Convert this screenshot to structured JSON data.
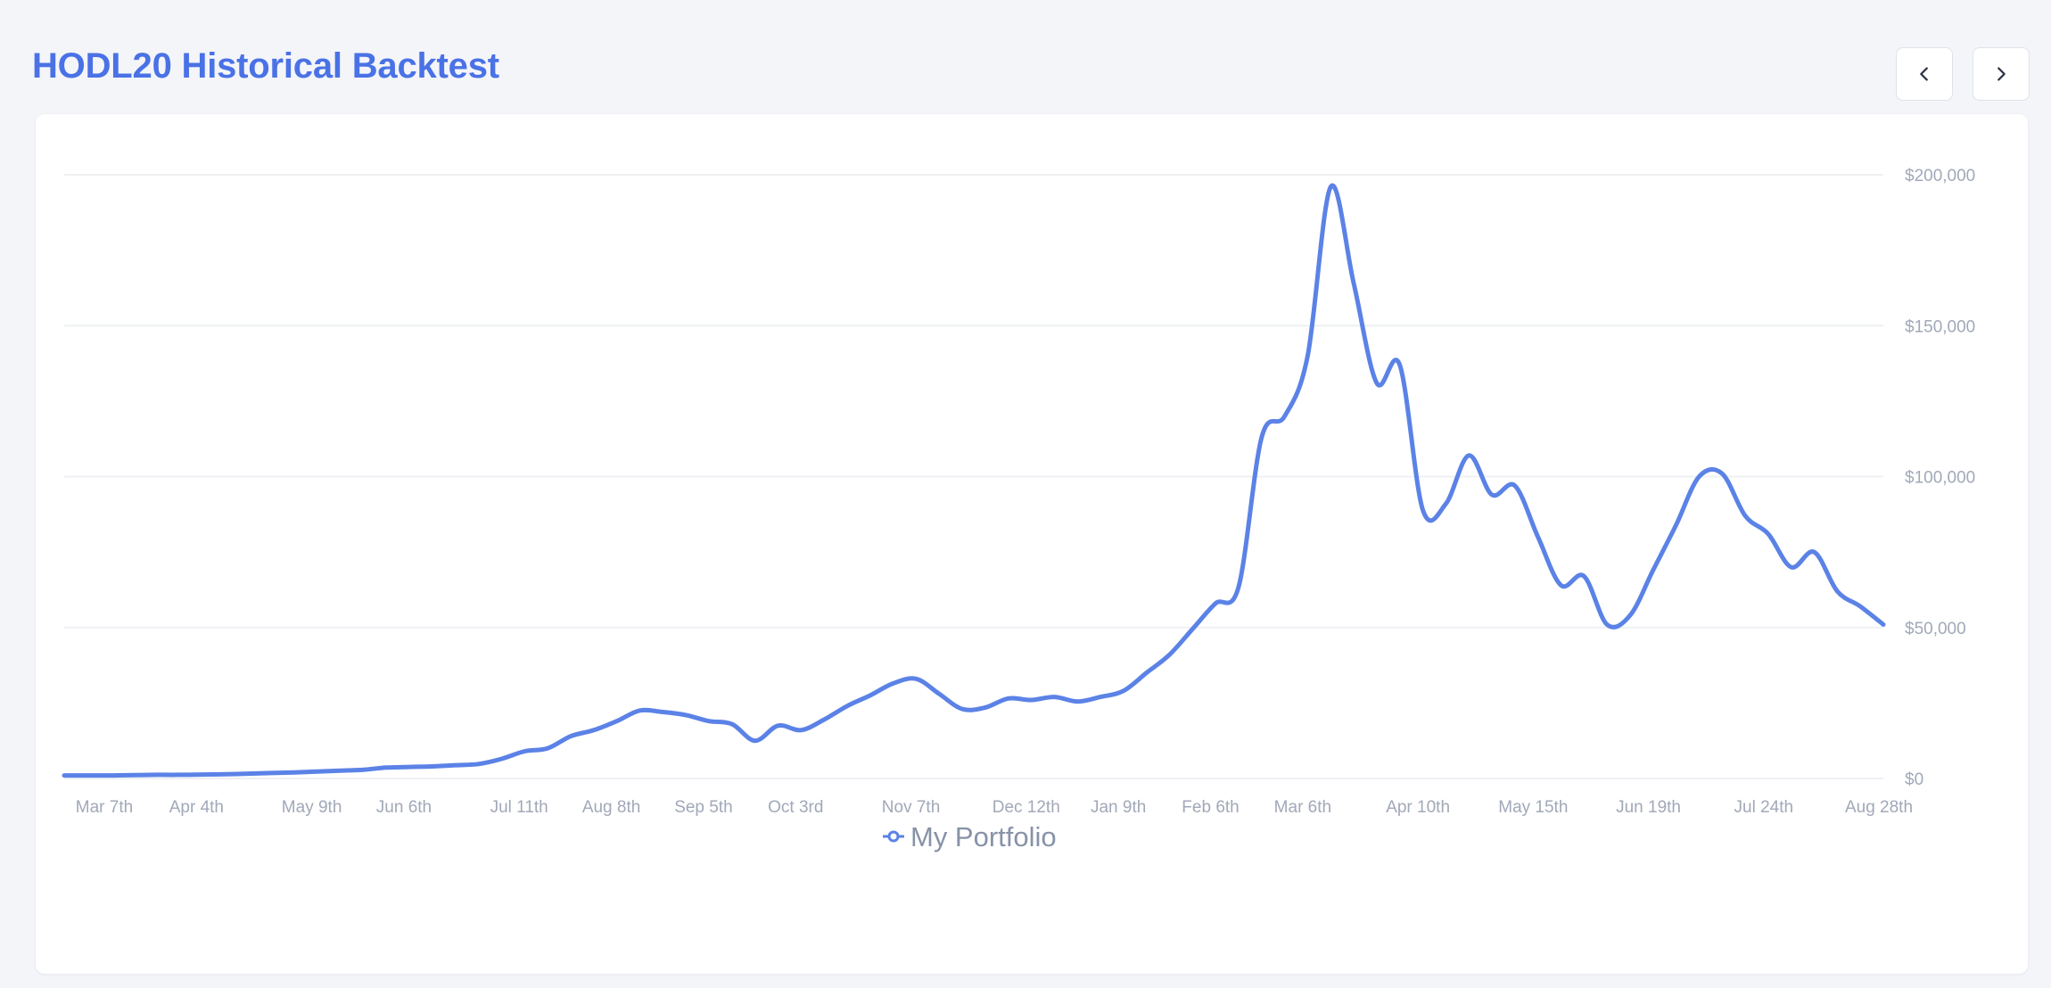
{
  "header": {
    "title": "HODL20 Historical Backtest",
    "prev_icon": "chevron-left-icon",
    "next_icon": "chevron-right-icon"
  },
  "colors": {
    "accent": "#4a72e6",
    "series": "#5b82e6",
    "grid": "#eef0f4",
    "tick": "#a1a8b8"
  },
  "chart_data": {
    "type": "line",
    "title": "",
    "xlabel": "",
    "ylabel": "",
    "ylim": [
      0,
      200000
    ],
    "y_ticks": [
      "$0",
      "$50,000",
      "$100,000",
      "$150,000",
      "$200,000"
    ],
    "y_axis_position": "right",
    "grid": true,
    "legend": "bottom-center",
    "x_ticks": [
      {
        "label": "Mar 7th",
        "week": 4
      },
      {
        "label": "Apr 4th",
        "week": 8
      },
      {
        "label": "May 9th",
        "week": 13
      },
      {
        "label": "Jun 6th",
        "week": 17
      },
      {
        "label": "Jul 11th",
        "week": 22
      },
      {
        "label": "Aug 8th",
        "week": 26
      },
      {
        "label": "Sep 5th",
        "week": 30
      },
      {
        "label": "Oct 3rd",
        "week": 34
      },
      {
        "label": "Nov 7th",
        "week": 39
      },
      {
        "label": "Dec 12th",
        "week": 44
      },
      {
        "label": "Jan 9th",
        "week": 48
      },
      {
        "label": "Feb 6th",
        "week": 52
      },
      {
        "label": "Mar 6th",
        "week": 56
      },
      {
        "label": "Apr 10th",
        "week": 61
      },
      {
        "label": "May 15th",
        "week": 66
      },
      {
        "label": "Jun 19th",
        "week": 71
      },
      {
        "label": "Jul 24th",
        "week": 76
      },
      {
        "label": "Aug 28th",
        "week": 81
      }
    ],
    "x_range": [
      0,
      79
    ],
    "series": [
      {
        "name": "My Portfolio",
        "x": [
          0,
          1,
          2,
          3,
          4,
          5,
          6,
          7,
          8,
          9,
          10,
          11,
          12,
          13,
          14,
          15,
          16,
          17,
          18,
          19,
          20,
          21,
          22,
          23,
          24,
          25,
          26,
          27,
          28,
          29,
          30,
          31,
          32,
          33,
          34,
          35,
          36,
          37,
          38,
          39,
          40,
          41,
          42,
          43,
          44,
          45,
          46,
          47,
          48,
          49,
          50,
          51,
          52,
          53,
          54,
          55,
          56,
          57,
          58,
          59,
          60,
          61,
          62,
          63,
          64,
          65,
          66,
          67,
          68,
          69,
          70,
          71,
          72,
          73,
          74,
          75,
          76,
          77,
          78,
          79
        ],
        "values": [
          1000,
          1000,
          1000,
          1100,
          1200,
          1200,
          1300,
          1400,
          1600,
          1800,
          2000,
          2300,
          2600,
          2900,
          3600,
          3800,
          4000,
          4400,
          4800,
          6500,
          9000,
          10000,
          14000,
          16000,
          19000,
          22500,
          22000,
          21000,
          19000,
          18000,
          12500,
          17500,
          16000,
          19500,
          24000,
          27500,
          31500,
          33000,
          28000,
          23000,
          23500,
          26500,
          26000,
          27000,
          25500,
          27000,
          29000,
          35000,
          41000,
          49500,
          58000,
          63500,
          113000,
          120000,
          140000,
          196000,
          164000,
          131000,
          137000,
          89000,
          91000,
          107000,
          94000,
          97000,
          80000,
          64000,
          67000,
          51000,
          54000,
          69000,
          84000,
          100000,
          101000,
          87000,
          81000,
          70000,
          75000,
          62000,
          57000,
          51000
        ]
      }
    ]
  }
}
